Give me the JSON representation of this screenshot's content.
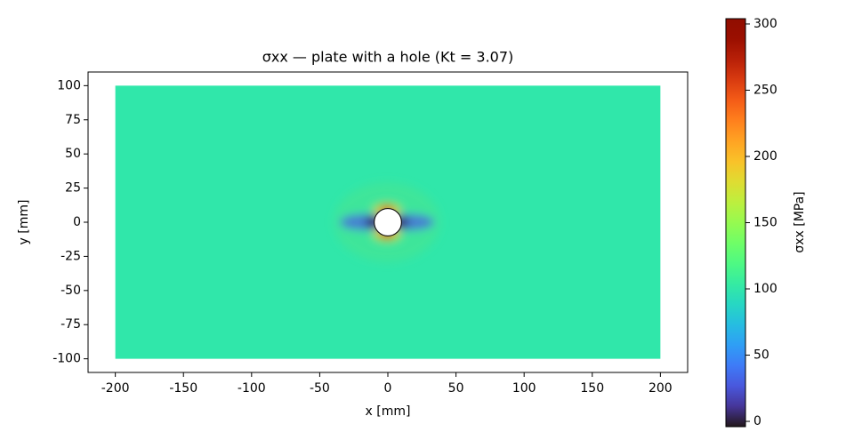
{
  "chart_data": {
    "type": "field",
    "title": "σxx — plate with a hole (Kt = 3.07)",
    "x_label": "x [mm]",
    "y_label": "y [mm]",
    "xlim": [
      -220,
      220
    ],
    "ylim": [
      -110,
      110
    ],
    "xticks": [
      -200,
      -150,
      -100,
      -50,
      0,
      50,
      100,
      150,
      200
    ],
    "yticks": [
      -100,
      -75,
      -50,
      -25,
      0,
      25,
      50,
      75,
      100
    ],
    "plate": {
      "x": [
        -200,
        200
      ],
      "y": [
        -100,
        100
      ],
      "hole_radius": 10,
      "nominal": 100
    },
    "colormap": "turbo",
    "colorbar": {
      "label": "σxx [MPa]",
      "clim": [
        -4,
        304
      ],
      "ticks": [
        0,
        50,
        100,
        150,
        200,
        250,
        300
      ]
    }
  }
}
